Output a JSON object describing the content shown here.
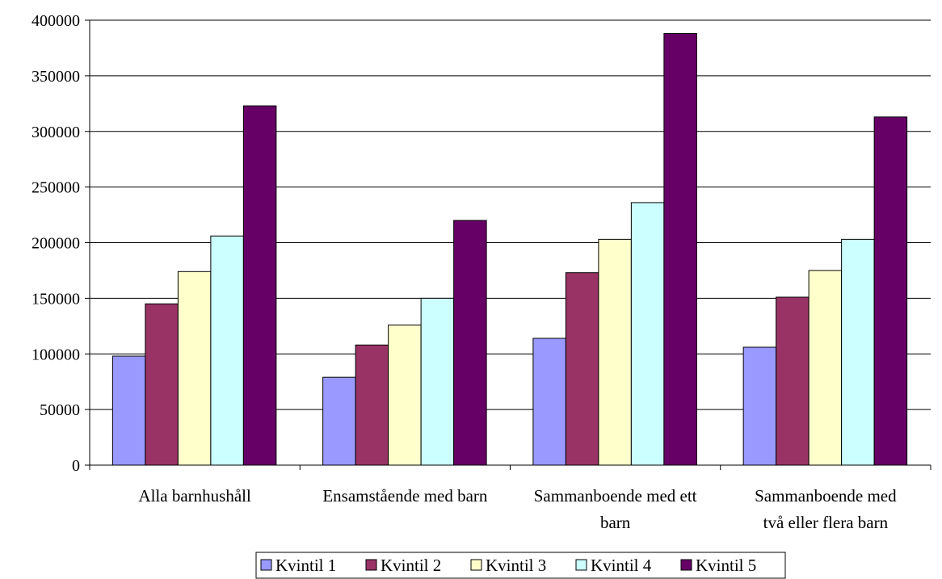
{
  "chart_data": {
    "type": "bar",
    "title": "",
    "xlabel": "",
    "ylabel": "",
    "ylim": [
      0,
      400000
    ],
    "yticks": [
      0,
      50000,
      100000,
      150000,
      200000,
      250000,
      300000,
      350000,
      400000
    ],
    "grid": true,
    "legend_position": "bottom",
    "categories": [
      [
        "Alla barnhushåll"
      ],
      [
        "Ensamstående med barn"
      ],
      [
        "Sammanboende med ett",
        "barn"
      ],
      [
        "Sammanboende med",
        "två eller flera barn"
      ]
    ],
    "series": [
      {
        "name": "Kvintil 1",
        "color": "#9999ff",
        "values": [
          98000,
          79000,
          114000,
          106000
        ]
      },
      {
        "name": "Kvintil 2",
        "color": "#993366",
        "values": [
          145000,
          108000,
          173000,
          151000
        ]
      },
      {
        "name": "Kvintil 3",
        "color": "#ffffcc",
        "values": [
          174000,
          126000,
          203000,
          175000
        ]
      },
      {
        "name": "Kvintil 4",
        "color": "#ccffff",
        "values": [
          206000,
          150000,
          236000,
          203000
        ]
      },
      {
        "name": "Kvintil 5",
        "color": "#660066",
        "values": [
          323000,
          220000,
          388000,
          313000
        ]
      }
    ]
  }
}
